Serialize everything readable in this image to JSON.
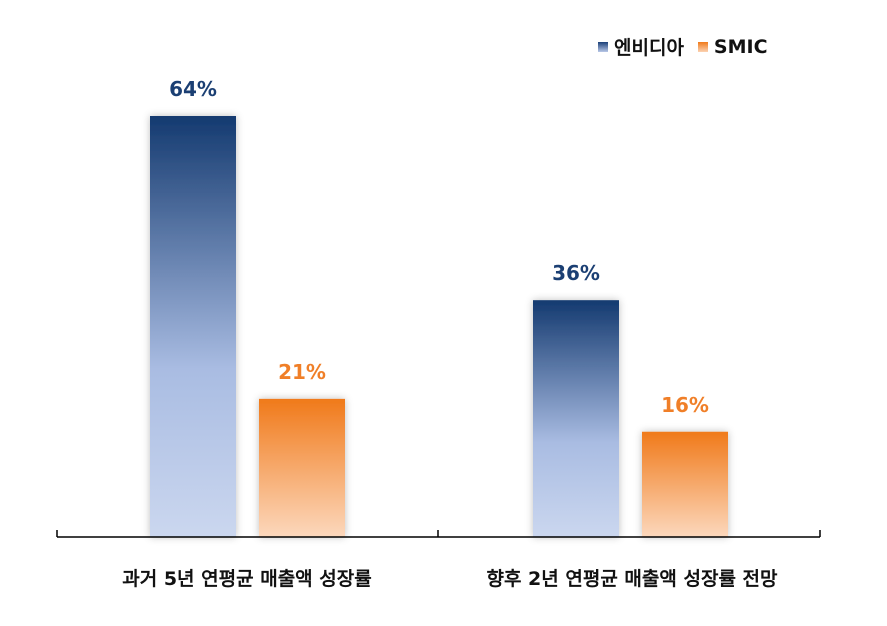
{
  "chart_data": {
    "type": "bar",
    "categories": [
      "과거 5년 연평균 매출액 성장률",
      "향후 2년 연평균 매출액 성장률 전망"
    ],
    "series": [
      {
        "name": "엔비디아",
        "values": [
          64,
          36
        ],
        "labels": [
          "64%",
          "36%"
        ],
        "color": "#1a3f78",
        "label_color": "#1b3f73"
      },
      {
        "name": "SMIC",
        "values": [
          21,
          16
        ],
        "labels": [
          "21%",
          "16%"
        ],
        "color": "#f07a1a",
        "label_color": "#f07f28"
      }
    ],
    "ylim": [
      0,
      64
    ],
    "grid": false,
    "legend": "top-right"
  }
}
